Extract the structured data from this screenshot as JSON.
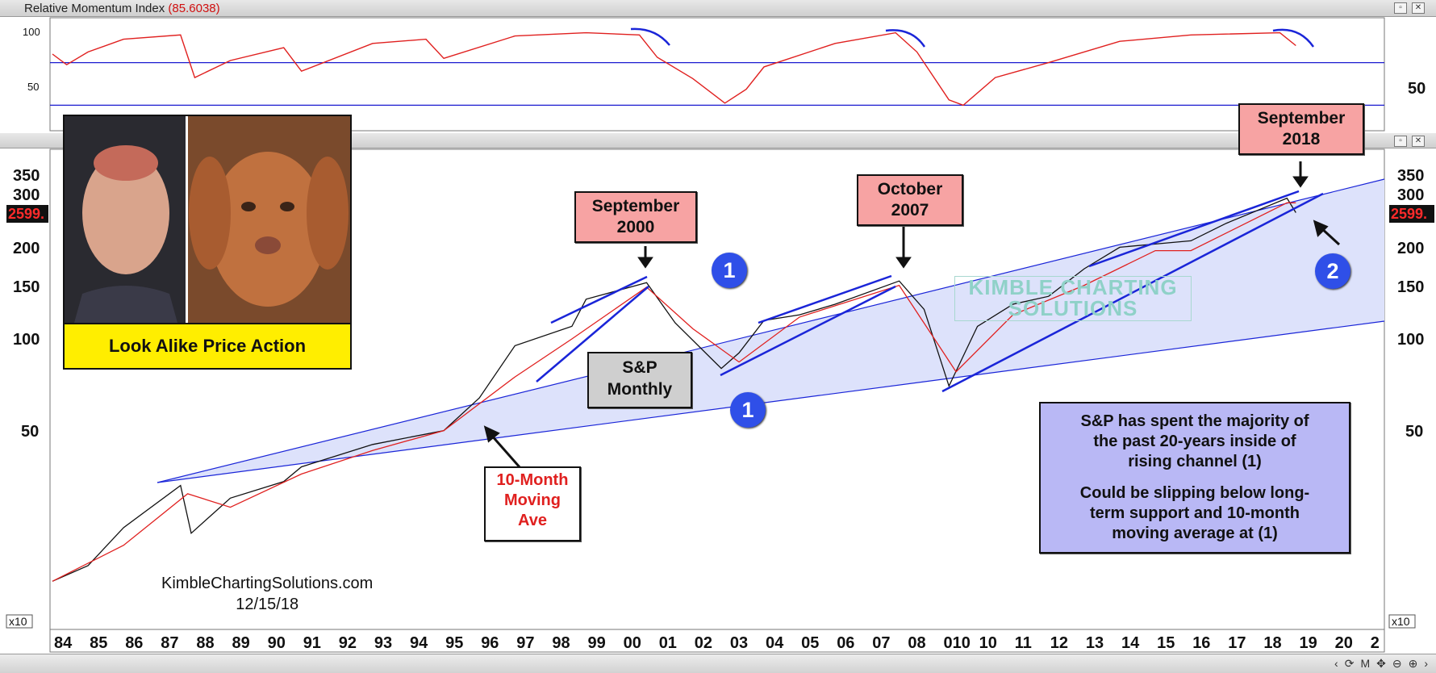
{
  "indicator": {
    "title": "Relative Momentum Index",
    "value": "(85.6038)",
    "levels": [
      70,
      30
    ],
    "ticks_left": [
      "100",
      "50"
    ],
    "tick_right": "50"
  },
  "price_axis": {
    "ticks": [
      "350",
      "300",
      "200",
      "150",
      "100",
      "50"
    ],
    "last_price_tag": "2599.",
    "scale_label": "x10"
  },
  "x_axis": {
    "labels": [
      "84",
      "85",
      "86",
      "87",
      "88",
      "89",
      "90",
      "91",
      "92",
      "93",
      "94",
      "95",
      "96",
      "97",
      "98",
      "99",
      "00",
      "01",
      "02",
      "03",
      "04",
      "05",
      "06",
      "07",
      "08",
      "010",
      "10",
      "11",
      "12",
      "13",
      "14",
      "15",
      "16",
      "17",
      "18",
      "19",
      "20",
      "2"
    ]
  },
  "chart_data": {
    "type": "line",
    "title": "S&P Monthly",
    "scale": "log",
    "xlabel": "",
    "ylabel": "",
    "y_unit_note": "x10",
    "ylim": [
      10,
      400
    ],
    "series": [
      {
        "name": "",
        "x": [
          1984,
          1985,
          1986,
          1987.6,
          1987.9,
          1989,
          1990.5,
          1991,
          1993,
          1995,
          1996,
          1997,
          1998.6,
          1999,
          2000.7,
          2001.5,
          2002.8,
          2003.3,
          2004,
          2005,
          2006,
          2007.8,
          2008.5,
          2009.2,
          2010,
          2011,
          2012,
          2013,
          2014,
          2015,
          2016,
          2017,
          2018.7,
          2018.95
        ],
        "y": [
          16,
          18,
          24,
          33,
          23,
          30,
          34,
          38,
          45,
          50,
          64,
          95,
          110,
          135,
          153,
          113,
          80,
          90,
          115,
          120,
          130,
          155,
          125,
          70,
          110,
          130,
          138,
          170,
          200,
          205,
          210,
          240,
          290,
          259.9
        ]
      },
      {
        "name": "",
        "x": [
          1984,
          1986,
          1987.8,
          1989,
          1991,
          1993,
          1995,
          1997,
          1998.6,
          2000.7,
          2002,
          2003.3,
          2005,
          2007.8,
          2009.4,
          2011,
          2013,
          2015,
          2016,
          2018.7,
          2018.95
        ],
        "y": [
          16,
          21,
          31,
          28,
          36,
          43,
          50,
          75,
          100,
          148,
          108,
          84,
          118,
          150,
          78,
          120,
          150,
          195,
          195,
          280,
          280
        ]
      }
    ],
    "momentum_series": {
      "x": [
        1984,
        1984.4,
        1985,
        1986,
        1987.6,
        1988,
        1989,
        1990.5,
        1991,
        1993,
        1994.5,
        1995,
        1997,
        1999,
        2000.5,
        2001,
        2002,
        2002.9,
        2003.5,
        2004,
        2006,
        2007.7,
        2008.3,
        2009.2,
        2009.6,
        2010.5,
        2012,
        2014,
        2016,
        2018.5,
        2018.95
      ],
      "y": [
        78,
        68,
        80,
        92,
        96,
        56,
        72,
        84,
        62,
        88,
        92,
        74,
        95,
        98,
        96,
        75,
        55,
        32,
        45,
        66,
        88,
        98,
        80,
        35,
        30,
        56,
        70,
        90,
        96,
        98,
        86
      ]
    },
    "annotations": [
      "September 2000",
      "October 2007",
      "September 2018",
      "10-Month Moving Ave",
      "S&P Monthly",
      "S&P has spent the majority of the past 20-years inside of rising channel (1)",
      "Could be slipping below long-term support and 10-month moving average at (1)"
    ]
  },
  "labels": {
    "sep2000_l1": "September",
    "sep2000_l2": "2000",
    "oct2007_l1": "October",
    "oct2007_l2": "2007",
    "sep2018_l1": "September",
    "sep2018_l2": "2018",
    "sp_l1": "S&P",
    "sp_l2": "Monthly",
    "ma_l1": "10-Month",
    "ma_l2": "Moving",
    "ma_l3": "Ave",
    "note_l1": "S&P has spent the majority of",
    "note_l2": "the past 20-years inside of",
    "note_l3": "rising channel (1)",
    "note_l4": "Could be slipping below long-",
    "note_l5": "term support and 10-month",
    "note_l6": "moving average at (1)",
    "circle1": "1",
    "circle2": "2",
    "lookalike": "Look Alike Price Action",
    "wm_l1": "KIMBLE CHARTING",
    "wm_l2": "SOLUTIONS",
    "credit_l1": "KimbleChartingSolutions.com",
    "credit_l2": "12/15/18"
  },
  "toolbar": {
    "refresh": "⟳",
    "m": "M",
    "move": "✥",
    "zoomout": "⊖",
    "zoomin": "⊕",
    "left": "‹",
    "right": "›"
  },
  "colors": {
    "price": "#111111",
    "ma": "#e0201f",
    "channel_fill": "#dde2fb",
    "trend": "#1a25d8",
    "rmi": "#e0201f",
    "rmi_level": "#1a1ad0"
  }
}
